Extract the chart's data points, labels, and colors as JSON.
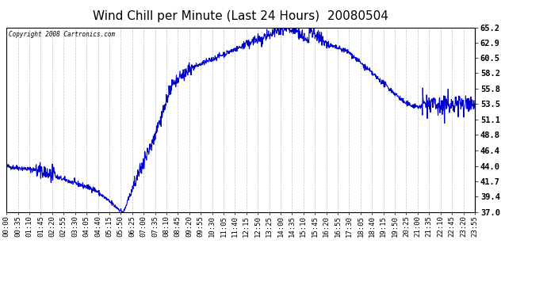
{
  "title": "Wind Chill per Minute (Last 24 Hours)  20080504",
  "copyright_text": "Copyright 2008 Cartronics.com",
  "line_color": "#0000cc",
  "background_color": "#ffffff",
  "plot_bg_color": "#ffffff",
  "grid_color": "#b0b0b0",
  "ylim": [
    37.0,
    65.2
  ],
  "yticks": [
    37.0,
    39.4,
    41.7,
    44.0,
    46.4,
    48.8,
    51.1,
    53.5,
    55.8,
    58.2,
    60.5,
    62.9,
    65.2
  ],
  "xtick_labels": [
    "00:00",
    "00:35",
    "01:10",
    "01:45",
    "02:20",
    "02:55",
    "03:30",
    "04:05",
    "04:40",
    "05:15",
    "05:50",
    "06:25",
    "07:00",
    "07:35",
    "08:10",
    "08:45",
    "09:20",
    "09:55",
    "10:30",
    "11:05",
    "11:40",
    "12:15",
    "12:50",
    "13:25",
    "14:00",
    "14:35",
    "15:10",
    "15:45",
    "16:20",
    "16:55",
    "17:30",
    "18:05",
    "18:40",
    "19:15",
    "19:50",
    "20:25",
    "21:00",
    "21:35",
    "22:10",
    "22:45",
    "23:20",
    "23:55"
  ],
  "line_width": 0.8,
  "title_fontsize": 11,
  "tick_fontsize": 6.5,
  "ytick_fontsize": 7.5
}
